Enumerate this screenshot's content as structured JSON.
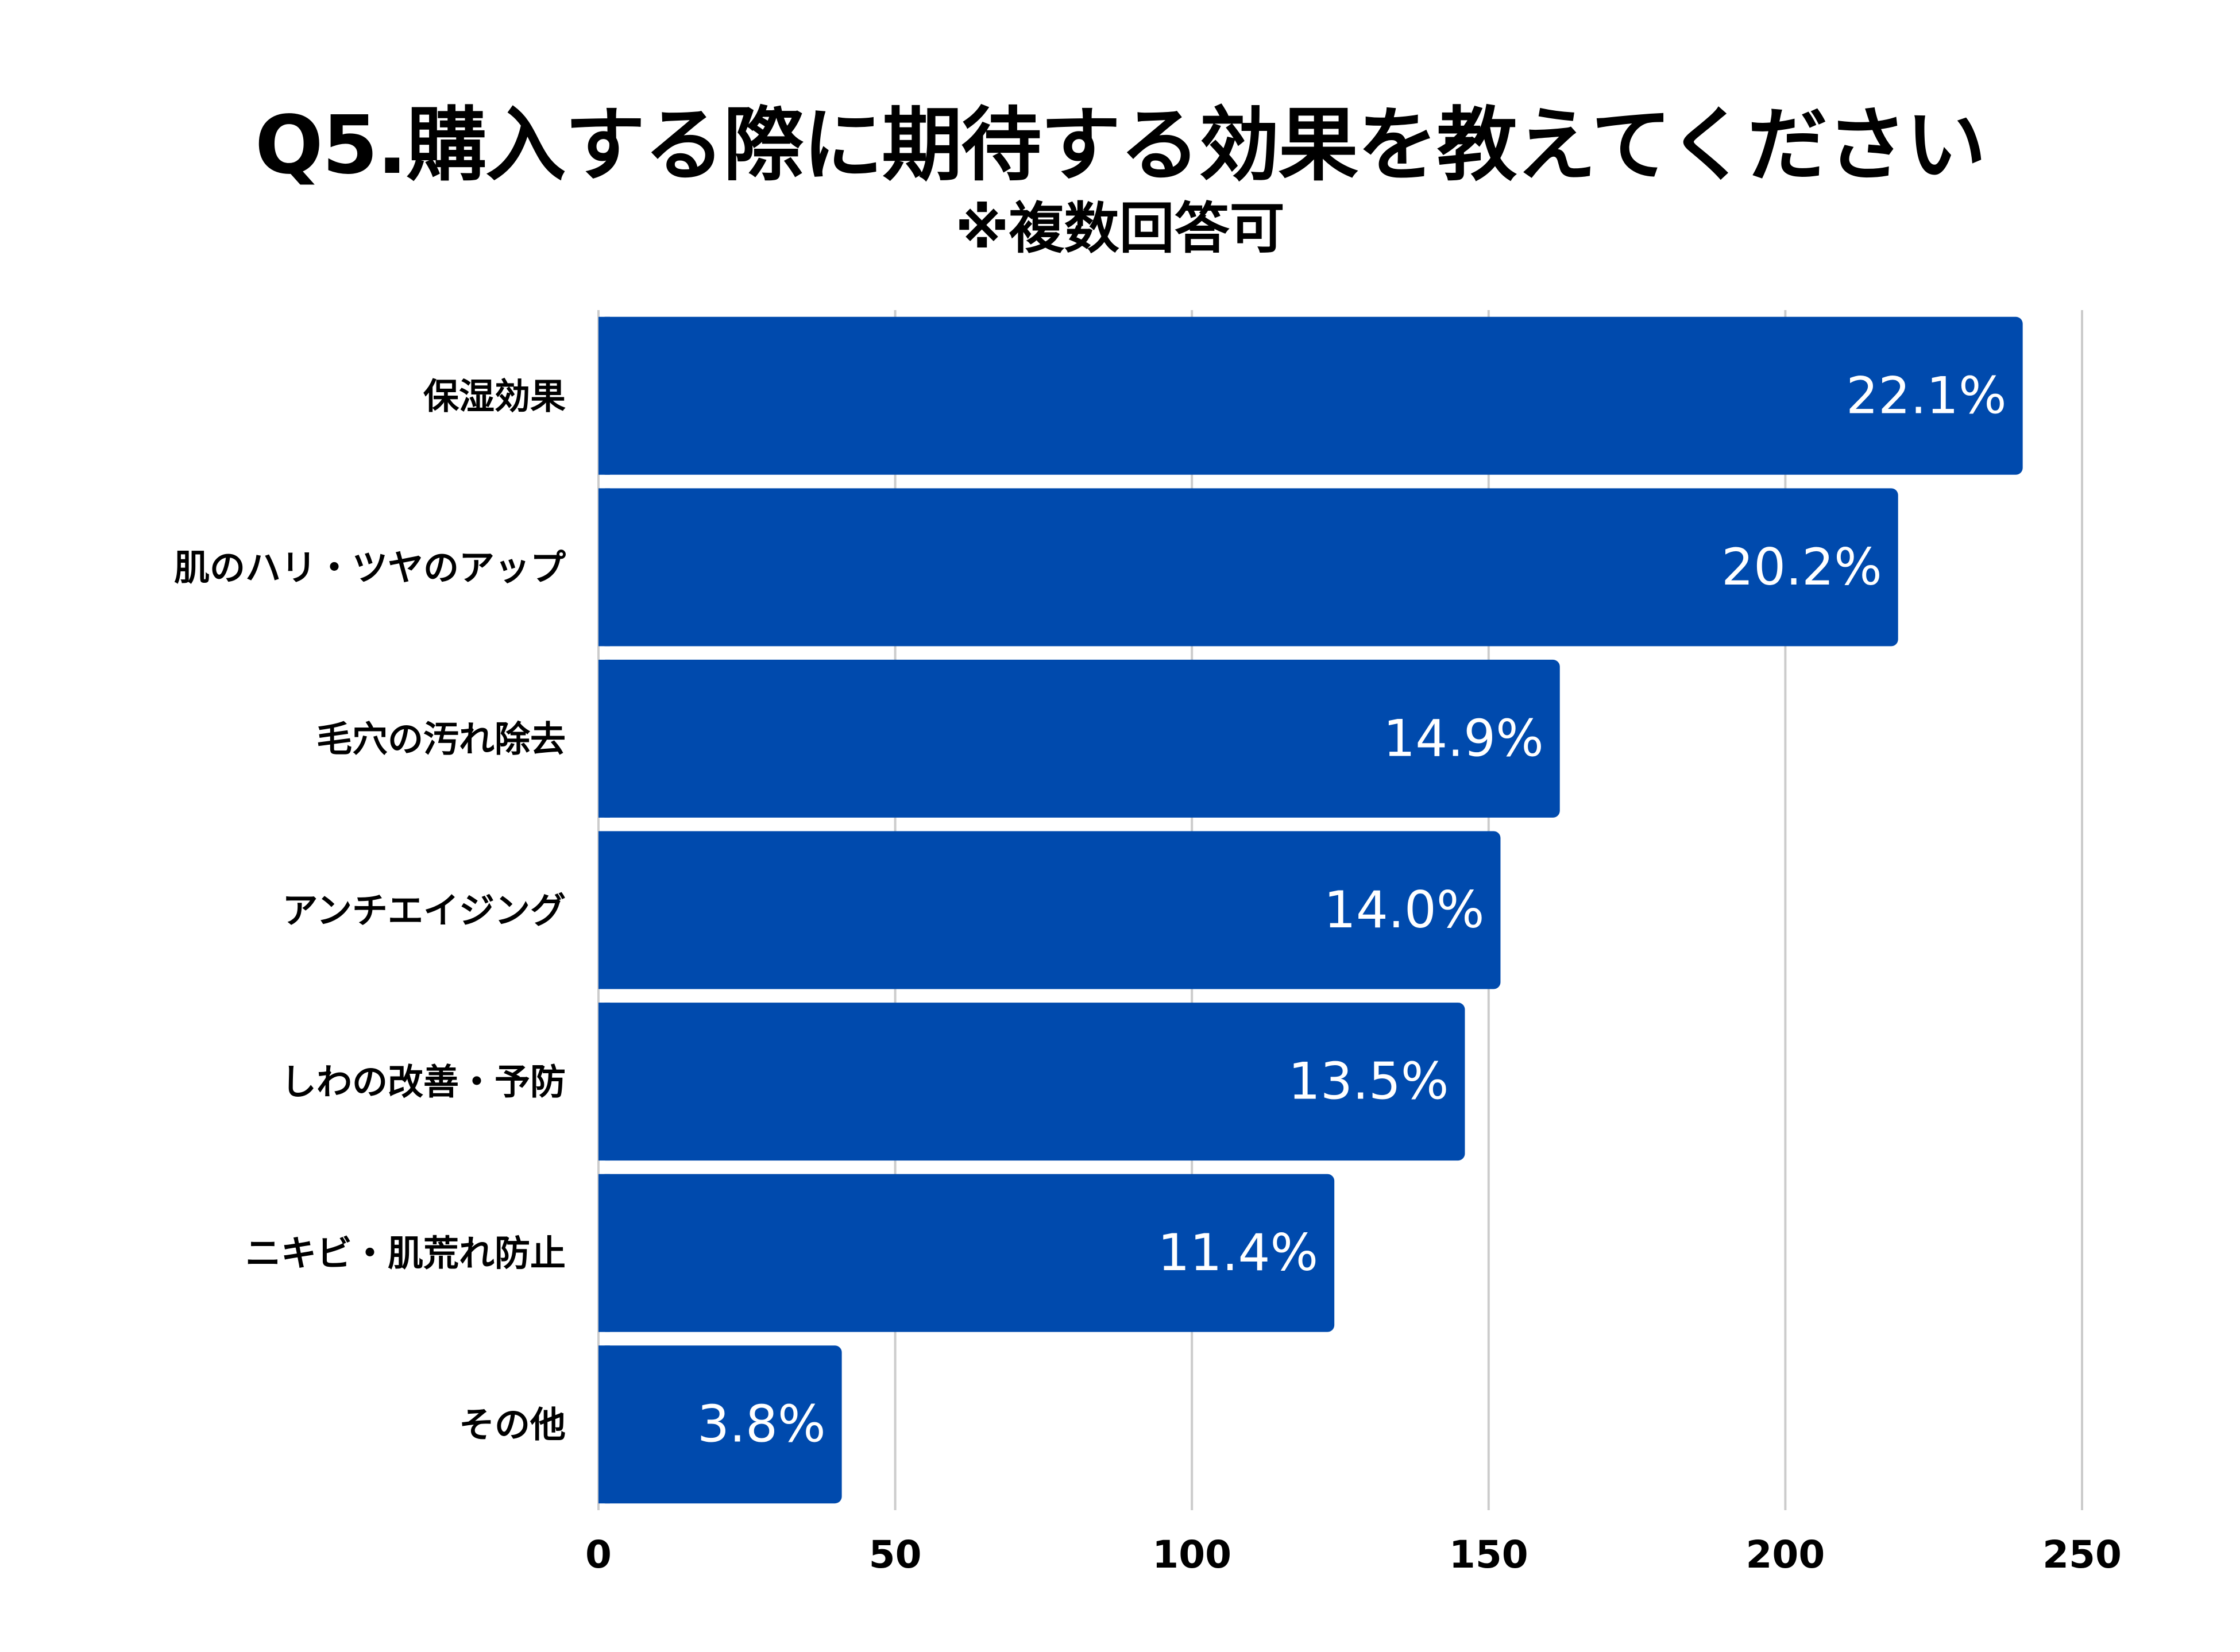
{
  "chart_data": {
    "type": "bar",
    "orientation": "horizontal",
    "title": "Q5.購入する際に期待する効果を教えてください",
    "subtitle": "※複数回答可",
    "categories": [
      "保湿効果",
      "肌のハリ・ツヤのアップ",
      "毛穴の汚れ除去",
      "アンチエイジング",
      "しわの改善・予防",
      "ニキビ・肌荒れ防止",
      "その他"
    ],
    "values": [
      240,
      219,
      162,
      152,
      146,
      124,
      41
    ],
    "data_labels": [
      "22.1%",
      "20.2%",
      "14.9%",
      "14.0%",
      "13.5%",
      "11.4%",
      "3.8%"
    ],
    "xlim": [
      0,
      250
    ],
    "xticks": [
      0,
      50,
      100,
      150,
      200,
      250
    ],
    "xtick_labels": [
      "0",
      "50",
      "100",
      "150",
      "200",
      "250"
    ],
    "grid": "vertical",
    "bar_color": "#004AAD",
    "grid_color": "#CCCCCC",
    "label_color": "#FFFFFF"
  }
}
